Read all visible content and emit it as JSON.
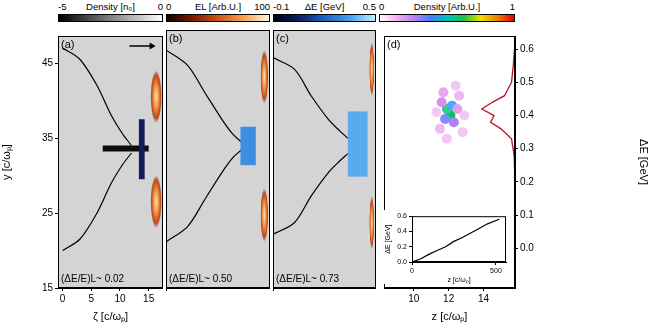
{
  "colorbars": [
    {
      "label": "Density [n₀]",
      "range": [
        -5,
        0
      ],
      "ticks": [
        -5,
        0
      ],
      "colors": [
        "#000000",
        "#ffffff"
      ]
    },
    {
      "label": "EL [Arb.U.]",
      "range": [
        0,
        100
      ],
      "ticks": [
        0,
        100
      ],
      "colors": [
        "#1a0000",
        "#7a1a05",
        "#d0501a",
        "#f5a050",
        "#fff5e0"
      ]
    },
    {
      "label": "ΔE [GeV]",
      "range": [
        -0.1,
        0.5
      ],
      "ticks": [
        -0.1,
        0.5
      ],
      "colors": [
        "#000010",
        "#102060",
        "#2060c0",
        "#40a0f0",
        "#c0f0ff"
      ]
    },
    {
      "label": "Density [Arb.U.]",
      "range": [
        0,
        1
      ],
      "ticks": [
        0,
        1
      ],
      "colors": [
        "#ffffff",
        "#f0b0f0",
        "#c080f0",
        "#4080ff",
        "#00c0c0",
        "#20c040",
        "#f0e000",
        "#f08000",
        "#e00000"
      ]
    }
  ],
  "chart_data": [
    {
      "type": "density_map",
      "panel_label": "(a)",
      "annotation": "(ΔE/E)L~ 0.02",
      "x_label": "ζ [c/ωₚ]",
      "y_label": "y [c/ωₚ]",
      "xlim": [
        -0.8,
        17.5
      ],
      "xticks": [
        0,
        5,
        10,
        15
      ],
      "ylim": [
        15,
        48.6
      ],
      "yticks": [
        15,
        25,
        35,
        45
      ],
      "laser": [
        {
          "zeta": [
            15.3,
            17.3
          ],
          "y": [
            37,
            44
          ]
        },
        {
          "zeta": [
            15.3,
            17.3
          ],
          "y": [
            23,
            30
          ]
        }
      ],
      "beam": [
        {
          "zeta": [
            7,
            15
          ],
          "y": [
            33.2,
            34
          ],
          "color": "#0d0d0d"
        },
        {
          "zeta": [
            13.3,
            14.3
          ],
          "y": [
            29.5,
            37.5
          ],
          "color": "#131c5a"
        }
      ],
      "sheath": [
        [
          [
            0,
            47
          ],
          [
            3,
            45.5
          ],
          [
            6,
            42
          ],
          [
            8.5,
            38
          ],
          [
            10.5,
            35.5
          ],
          [
            12,
            34
          ]
        ],
        [
          [
            0,
            20
          ],
          [
            3,
            21.5
          ],
          [
            6,
            25
          ],
          [
            8.5,
            29
          ],
          [
            10.5,
            31.5
          ],
          [
            12,
            33
          ]
        ]
      ]
    },
    {
      "type": "density_map",
      "panel_label": "(b)",
      "annotation": "(ΔE/E)L~ 0.50",
      "tick_labels": false,
      "xlim": [
        -0.8,
        17.5
      ],
      "ylim": [
        15,
        48.6
      ],
      "laser": [
        {
          "zeta": [
            15.8,
            17.2
          ],
          "y": [
            39,
            46
          ]
        },
        {
          "zeta": [
            15.8,
            17.2
          ],
          "y": [
            21,
            28
          ]
        }
      ],
      "beam": [
        {
          "zeta": [
            12.3,
            15
          ],
          "y": [
            31,
            36
          ],
          "color": "#3c8ee0"
        }
      ],
      "sheath": [
        [
          [
            -0.8,
            46
          ],
          [
            3,
            44
          ],
          [
            6,
            40.5
          ],
          [
            9,
            37
          ],
          [
            11,
            35
          ],
          [
            12.5,
            34
          ]
        ],
        [
          [
            -0.8,
            21
          ],
          [
            3,
            23
          ],
          [
            6,
            26.5
          ],
          [
            9,
            30
          ],
          [
            11,
            32
          ],
          [
            12.5,
            33
          ]
        ]
      ]
    },
    {
      "type": "density_map",
      "panel_label": "(c)",
      "annotation": "(ΔE/E)L~ 0.73",
      "tick_labels": false,
      "xlim": [
        -0.8,
        17.5
      ],
      "ylim": [
        15,
        48.6
      ],
      "laser": [
        {
          "zeta": [
            16.3,
            17.2
          ],
          "y": [
            40,
            47
          ]
        },
        {
          "zeta": [
            16.3,
            17.2
          ],
          "y": [
            20,
            27
          ]
        }
      ],
      "beam": [
        {
          "zeta": [
            12.5,
            16
          ],
          "y": [
            29.5,
            38
          ],
          "color": "#5aaaf0"
        }
      ],
      "sheath": [
        [
          [
            -0.8,
            45
          ],
          [
            3,
            43.5
          ],
          [
            6,
            40
          ],
          [
            9,
            37
          ],
          [
            11,
            35.5
          ],
          [
            12.5,
            34.5
          ]
        ],
        [
          [
            -0.8,
            22
          ],
          [
            3,
            23.5
          ],
          [
            6,
            27
          ],
          [
            9,
            30
          ],
          [
            11,
            31.5
          ],
          [
            12.5,
            32.5
          ]
        ]
      ]
    },
    {
      "type": "scatter",
      "panel_label": "(d)",
      "x_label": "z [c/ωₚ]",
      "y_label": "ΔE [GeV]",
      "xlim": [
        8.3,
        15.8
      ],
      "xticks": [
        10,
        12,
        14
      ],
      "ylim": [
        -0.12,
        0.64
      ],
      "yticks": [
        {
          "value": 0,
          "label": "0.0"
        },
        0.1,
        0.2,
        0.3,
        0.4,
        0.5,
        0.6
      ],
      "series": [
        {
          "type": "scatter",
          "x": [
            12.0,
            12.1,
            11.9,
            12.2,
            11.8,
            12.3,
            11.6,
            12.5,
            11.5,
            12.6,
            11.7,
            12.8,
            11.3,
            12.4,
            11.9,
            12.9
          ],
          "values": [
            0.41,
            0.4,
            0.42,
            0.43,
            0.39,
            0.38,
            0.44,
            0.42,
            0.36,
            0.46,
            0.47,
            0.35,
            0.41,
            0.49,
            0.33,
            0.4
          ],
          "colors": [
            "#f2e600",
            "#00c060",
            "#30d080",
            "#4aa8ff",
            "#7a8cff",
            "#b080f0",
            "#d890f0",
            "#e0a0f0",
            "#f0b8f0",
            "#f0b8f0",
            "#e8a8f0",
            "#f4c8f4",
            "#f4c8f4",
            "#f4c8f4",
            "#f4c8f4",
            "#f4c8f4"
          ]
        },
        {
          "type": "line",
          "color": "#c0102a",
          "x": [
            15.8,
            15.7,
            15.6,
            15.2,
            14.5,
            13.9,
            14.6,
            14.4,
            15.0,
            15.6,
            15.75,
            15.8,
            15.8
          ],
          "values": [
            0.62,
            0.55,
            0.5,
            0.46,
            0.44,
            0.42,
            0.4,
            0.38,
            0.36,
            0.33,
            0.28,
            0.2,
            -0.1
          ]
        }
      ]
    },
    {
      "type": "line",
      "x_label": "z [c/ωₚ]",
      "y_label": "ΔE [GeV]",
      "color": "#000000",
      "xlim": [
        0,
        560
      ],
      "xticks": [
        0,
        500
      ],
      "ylim": [
        0,
        0.6
      ],
      "yticks": [
        {
          "value": 0,
          "label": "0.0"
        },
        0.2,
        0.4,
        0.6
      ],
      "x": [
        0,
        50,
        100,
        150,
        200,
        250,
        300,
        350,
        400,
        450,
        520
      ],
      "values": [
        0.0,
        0.04,
        0.1,
        0.15,
        0.2,
        0.27,
        0.32,
        0.38,
        0.44,
        0.5,
        0.56
      ]
    }
  ]
}
